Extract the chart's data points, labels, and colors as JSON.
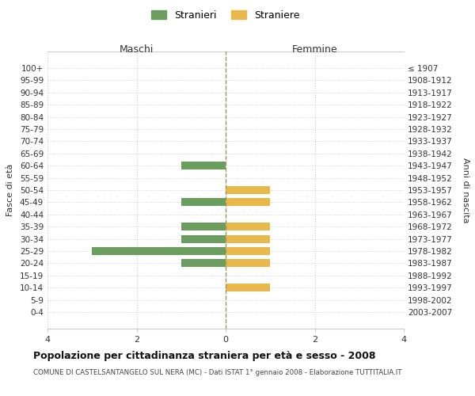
{
  "age_groups": [
    "100+",
    "95-99",
    "90-94",
    "85-89",
    "80-84",
    "75-79",
    "70-74",
    "65-69",
    "60-64",
    "55-59",
    "50-54",
    "45-49",
    "40-44",
    "35-39",
    "30-34",
    "25-29",
    "20-24",
    "15-19",
    "10-14",
    "5-9",
    "0-4"
  ],
  "birth_years": [
    "≤ 1907",
    "1908-1912",
    "1913-1917",
    "1918-1922",
    "1923-1927",
    "1928-1932",
    "1933-1937",
    "1938-1942",
    "1943-1947",
    "1948-1952",
    "1953-1957",
    "1958-1962",
    "1963-1967",
    "1968-1972",
    "1973-1977",
    "1978-1982",
    "1983-1987",
    "1988-1992",
    "1993-1997",
    "1998-2002",
    "2003-2007"
  ],
  "maschi_stranieri": [
    0,
    0,
    0,
    0,
    0,
    0,
    0,
    0,
    1,
    0,
    0,
    1,
    0,
    1,
    1,
    3,
    1,
    0,
    0,
    0,
    0
  ],
  "femmine_straniere": [
    0,
    0,
    0,
    0,
    0,
    0,
    0,
    0,
    0,
    0,
    1,
    1,
    0,
    1,
    1,
    1,
    1,
    0,
    1,
    0,
    0
  ],
  "color_maschi": "#6b9e5e",
  "color_femmine": "#e8b84b",
  "title": "Popolazione per cittadinanza straniera per età e sesso - 2008",
  "subtitle": "COMUNE DI CASTELSANTANGELO SUL NERA (MC) - Dati ISTAT 1° gennaio 2008 - Elaborazione TUTTITALIA.IT",
  "legend_maschi": "Stranieri",
  "legend_femmine": "Straniere",
  "xlabel_left": "Maschi",
  "xlabel_right": "Femmine",
  "ylabel_left": "Fasce di età",
  "ylabel_right": "Anni di nascita",
  "xlim": 4,
  "background_color": "#ffffff",
  "grid_color": "#cccccc",
  "grid_color_dashed": "#aaaaaa"
}
